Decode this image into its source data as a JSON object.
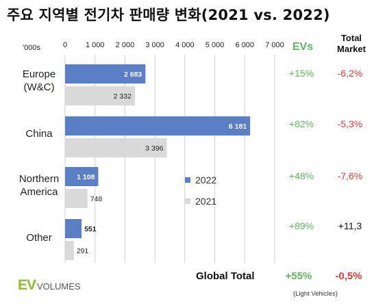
{
  "title": "주요 지역별 전기차 판매량 변화(2021 vs. 2022)",
  "unit_label": "'000s",
  "headers": {
    "evs": "EVs",
    "total_market": "Total\nMarket"
  },
  "legend": [
    {
      "name": "2022",
      "color": "#5b7fc7"
    },
    {
      "name": "2021",
      "color": "#d9d9d9"
    }
  ],
  "rows": [
    {
      "category": "Europe\n(W&C)",
      "ev_change": "+15%",
      "market_change": "-6,2%",
      "market_color": "#e53935"
    },
    {
      "category": "China",
      "ev_change": "+82%",
      "market_change": "-5,3%",
      "market_color": "#e53935"
    },
    {
      "category": "Northern\nAmerica",
      "ev_change": "+48%",
      "market_change": "-7,6%",
      "market_color": "#e53935"
    },
    {
      "category": "Other",
      "ev_change": "+89%",
      "market_change": "+11,3",
      "market_color": "#111111"
    }
  ],
  "global": {
    "label": "Global Total",
    "ev_change": "+55%",
    "market_change": "-0,5%"
  },
  "logo": {
    "ev": "EV",
    "volumes": "VOLUMES"
  },
  "footnote": "(Light Vehicles)",
  "chart_data": {
    "type": "bar",
    "orientation": "horizontal",
    "categories": [
      "Europe (W&C)",
      "China",
      "Northern America",
      "Other"
    ],
    "series": [
      {
        "name": "2022",
        "values": [
          2683,
          6181,
          1108,
          551
        ],
        "labels": [
          "2 683",
          "6 181",
          "1 108",
          "551"
        ],
        "color": "#5b7fc7"
      },
      {
        "name": "2021",
        "values": [
          2332,
          3396,
          748,
          291
        ],
        "labels": [
          "2 332",
          "3 396",
          "748",
          "291"
        ],
        "color": "#d9d9d9"
      }
    ],
    "xlim": [
      0,
      7000
    ],
    "ticks": [
      0,
      1000,
      2000,
      3000,
      4000,
      5000,
      6000,
      7000
    ],
    "tick_labels": [
      "0",
      "1 000",
      "2 000",
      "3 000",
      "4 000",
      "5 000",
      "6 000",
      "7 000"
    ],
    "grid": true
  }
}
